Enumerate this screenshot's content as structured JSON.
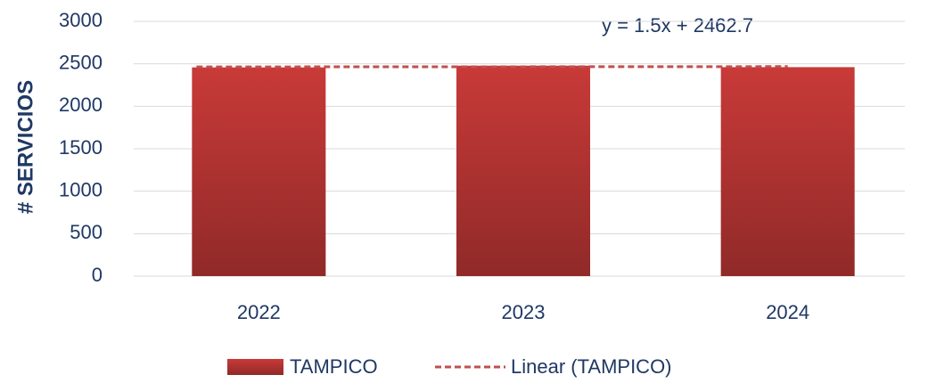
{
  "chart_data": {
    "type": "bar",
    "y_label": "# SERVICIOS",
    "categories": [
      "2022",
      "2023",
      "2024"
    ],
    "series": [
      {
        "name": "TAMPICO",
        "color": "#c83a38",
        "values": [
          2458,
          2478,
          2461
        ]
      }
    ],
    "trendline": {
      "name": "Linear (TAMPICO)",
      "color": "#c0504d",
      "equation": "y = 1.5x + 2462.7"
    },
    "ylim": [
      0,
      3000
    ],
    "yticks": [
      0,
      500,
      1000,
      1500,
      2000,
      2500,
      3000
    ],
    "grid": true,
    "legend": "bottom"
  }
}
